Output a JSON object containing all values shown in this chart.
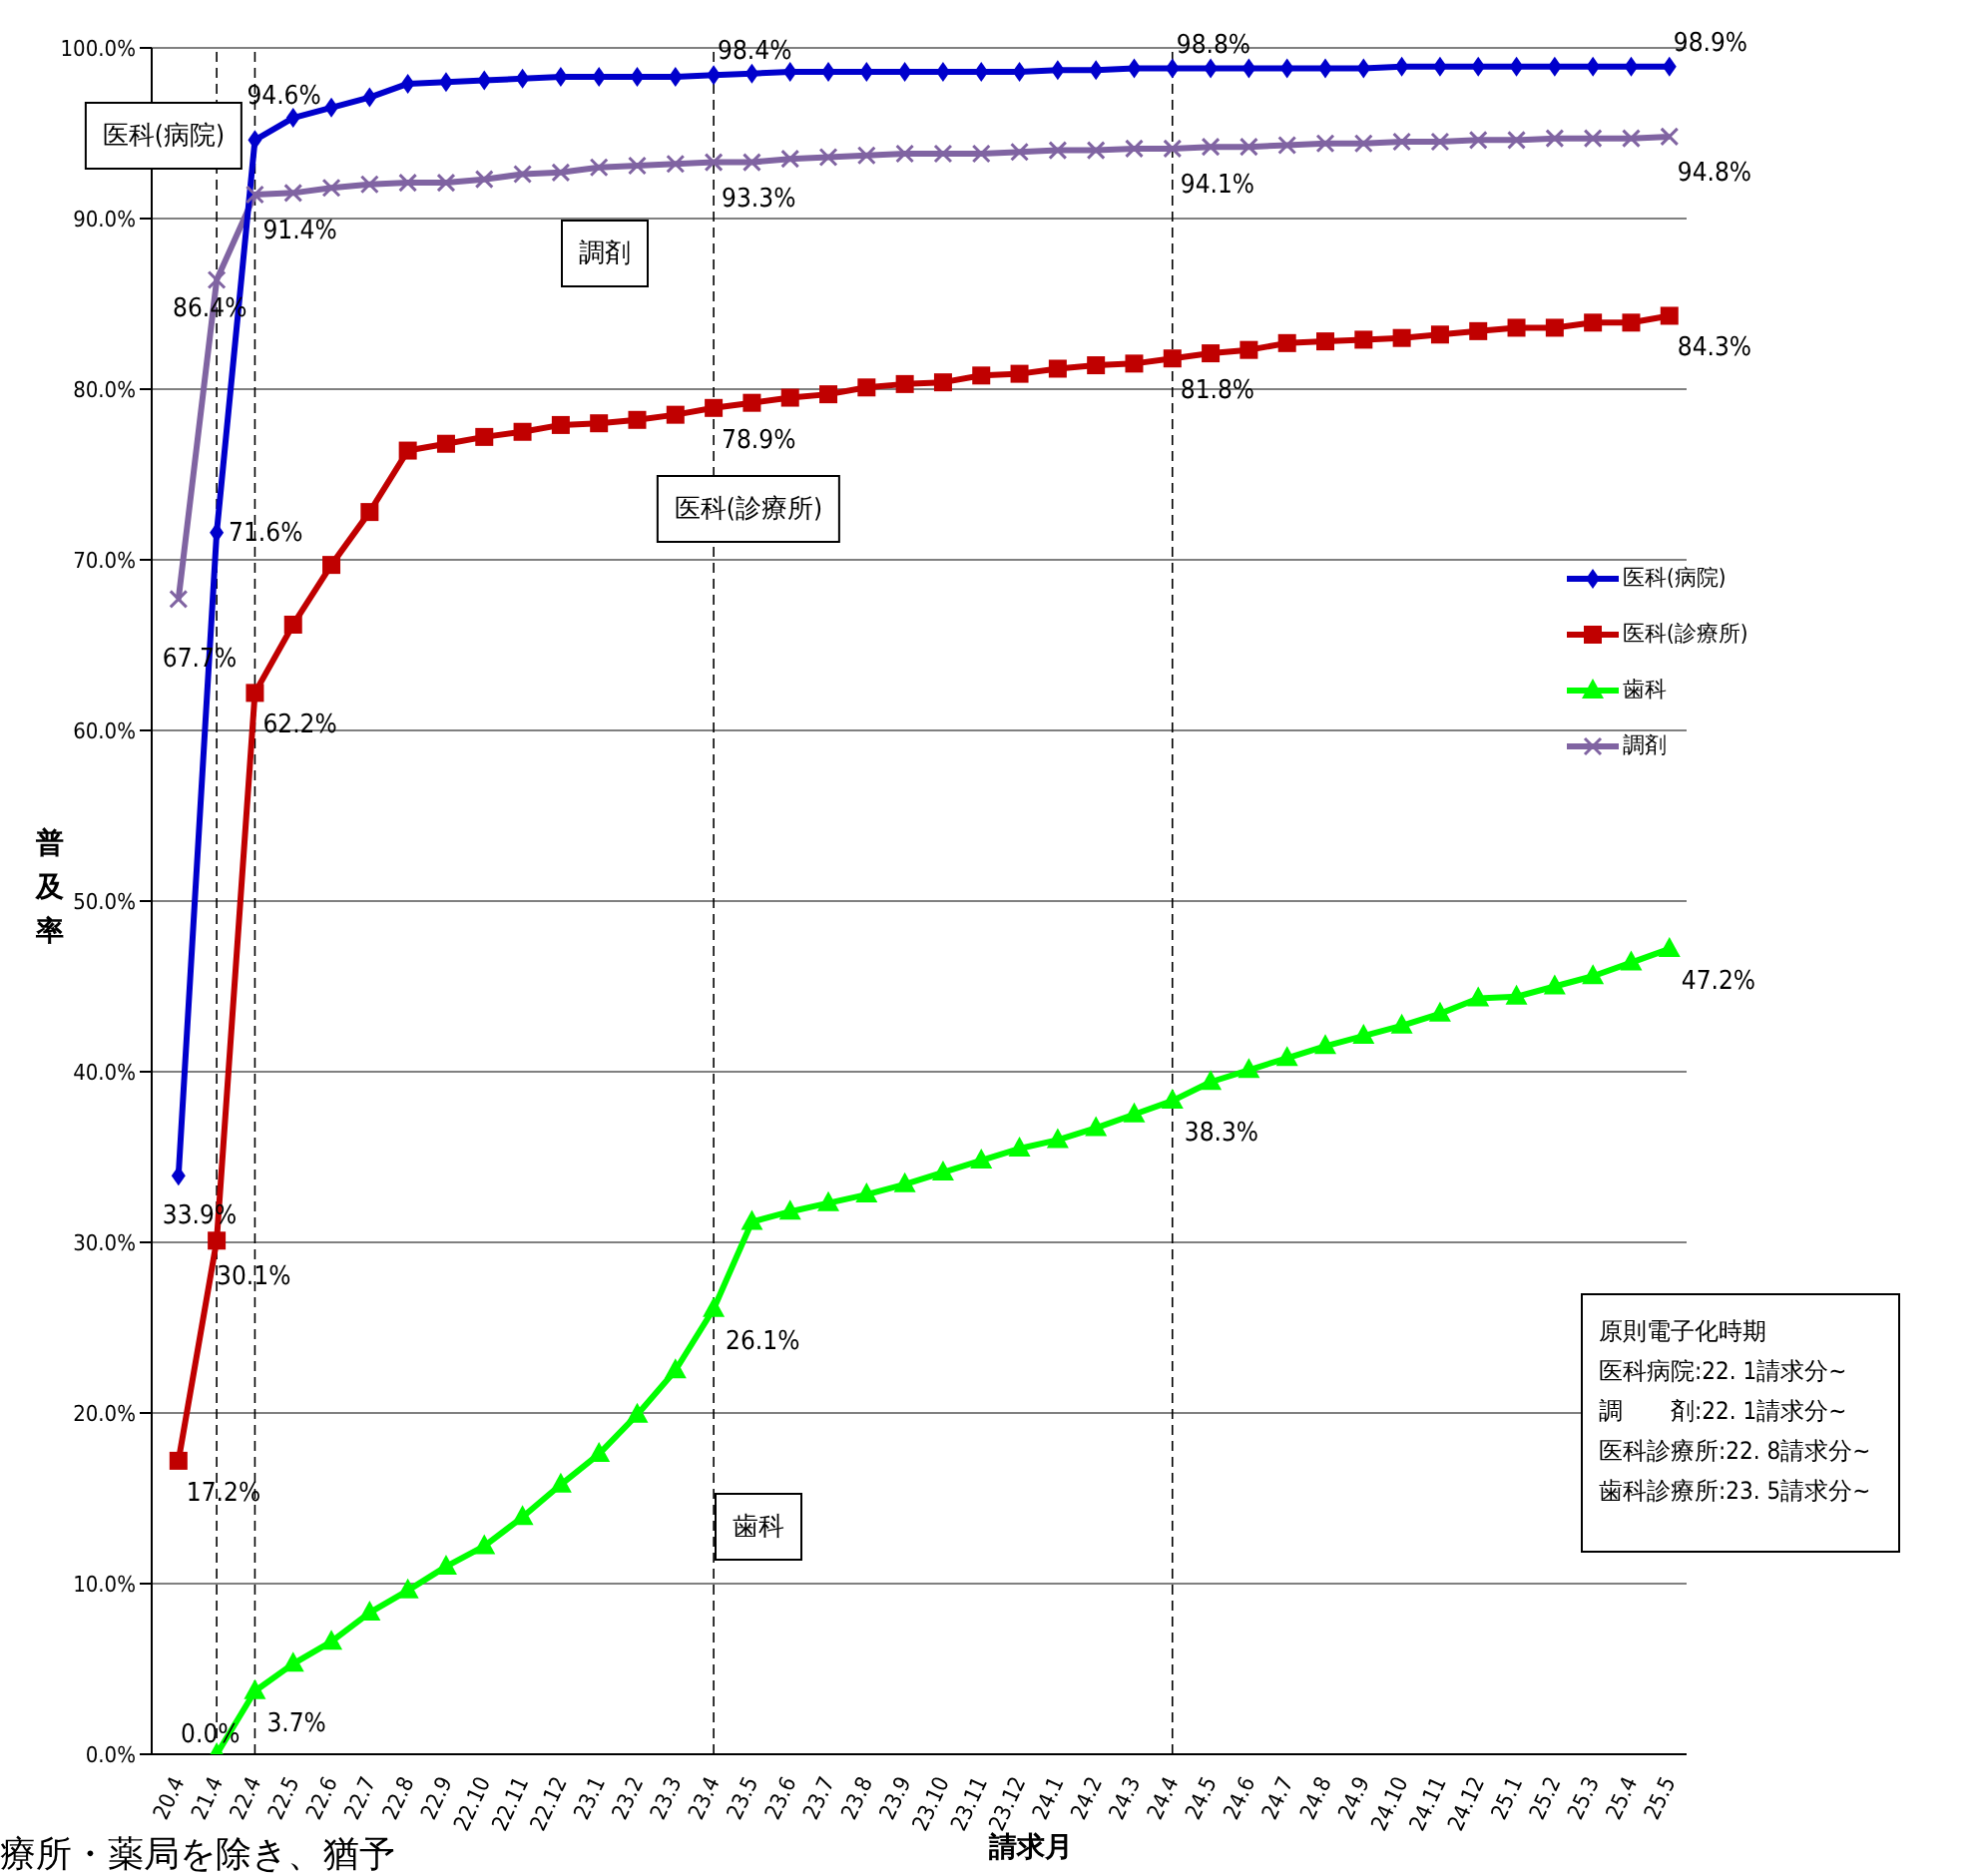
{
  "chart_data": {
    "type": "line",
    "xlabel": "請求月",
    "ylabel": "普及率",
    "categories": [
      "20.4",
      "21.4",
      "22.4",
      "22.5",
      "22.6",
      "22.7",
      "22.8",
      "22.9",
      "22.10",
      "22.11",
      "22.12",
      "23.1",
      "23.2",
      "23.3",
      "23.4",
      "23.5",
      "23.6",
      "23.7",
      "23.8",
      "23.9",
      "23.10",
      "23.11",
      "23.12",
      "24.1",
      "24.2",
      "24.3",
      "24.4",
      "24.5",
      "24.6",
      "24.7",
      "24.8",
      "24.9",
      "24.10",
      "24.11",
      "24.12",
      "25.1",
      "25.2",
      "25.3",
      "25.4",
      "25.5"
    ],
    "ylim": [
      0,
      100
    ],
    "yticks": [
      {
        "value": 0,
        "label": "0.0%"
      },
      {
        "value": 10,
        "label": "10.0%"
      },
      {
        "value": 20,
        "label": "20.0%"
      },
      {
        "value": 30,
        "label": "30.0%"
      },
      {
        "value": 40,
        "label": "40.0%"
      },
      {
        "value": 50,
        "label": "50.0%"
      },
      {
        "value": 60,
        "label": "60.0%"
      },
      {
        "value": 70,
        "label": "70.0%"
      },
      {
        "value": 80,
        "label": "80.0%"
      },
      {
        "value": 90,
        "label": "90.0%"
      },
      {
        "value": 100,
        "label": "100.0%"
      }
    ],
    "grid": "y",
    "legend": "right",
    "line_style": "solid",
    "series": [
      {
        "name": "医科(病院)",
        "color": "#0000cc",
        "marker": "diamond",
        "values": [
          33.9,
          71.6,
          94.6,
          95.9,
          96.5,
          97.1,
          97.9,
          98.0,
          98.1,
          98.2,
          98.3,
          98.3,
          98.3,
          98.3,
          98.4,
          98.5,
          98.6,
          98.6,
          98.6,
          98.6,
          98.6,
          98.6,
          98.6,
          98.7,
          98.7,
          98.8,
          98.8,
          98.8,
          98.8,
          98.8,
          98.8,
          98.8,
          98.9,
          98.9,
          98.9,
          98.9,
          98.9,
          98.9,
          98.9,
          98.9
        ],
        "value_labels": [
          "33.9%",
          "71.6%",
          "94.6%",
          null,
          null,
          null,
          null,
          null,
          null,
          null,
          null,
          null,
          null,
          null,
          "98.4%",
          null,
          null,
          null,
          null,
          null,
          null,
          null,
          null,
          null,
          null,
          null,
          "98.8%",
          null,
          null,
          null,
          null,
          null,
          null,
          null,
          null,
          null,
          null,
          null,
          null,
          "98.9%"
        ]
      },
      {
        "name": "医科(診療所)",
        "color": "#c00000",
        "marker": "square",
        "values": [
          17.2,
          30.1,
          62.2,
          66.2,
          69.7,
          72.8,
          76.4,
          76.8,
          77.2,
          77.5,
          77.9,
          78.0,
          78.2,
          78.5,
          78.9,
          79.2,
          79.5,
          79.7,
          80.1,
          80.3,
          80.4,
          80.8,
          80.9,
          81.2,
          81.4,
          81.5,
          81.8,
          82.1,
          82.3,
          82.7,
          82.8,
          82.9,
          83.0,
          83.2,
          83.4,
          83.6,
          83.6,
          83.9,
          83.9,
          84.3
        ],
        "value_labels": [
          "17.2%",
          "30.1%",
          "62.2%",
          null,
          null,
          null,
          null,
          null,
          null,
          null,
          null,
          null,
          null,
          null,
          "78.9%",
          null,
          null,
          null,
          null,
          null,
          null,
          null,
          null,
          null,
          null,
          null,
          "81.8%",
          null,
          null,
          null,
          null,
          null,
          null,
          null,
          null,
          null,
          null,
          null,
          null,
          "84.3%"
        ]
      },
      {
        "name": "歯科",
        "color": "#00ff00",
        "marker": "triangle",
        "values": [
          null,
          0.0,
          3.7,
          5.3,
          6.6,
          8.3,
          9.6,
          11.0,
          12.2,
          13.9,
          15.8,
          17.6,
          19.9,
          22.5,
          26.1,
          31.2,
          31.8,
          32.3,
          32.8,
          33.4,
          34.1,
          34.8,
          35.5,
          36.0,
          36.7,
          37.5,
          38.3,
          39.4,
          40.1,
          40.8,
          41.5,
          42.1,
          42.7,
          43.4,
          44.3,
          44.4,
          45.0,
          45.6,
          46.4,
          47.2
        ],
        "value_labels": [
          null,
          "0.0%",
          "3.7%",
          null,
          null,
          null,
          null,
          null,
          null,
          null,
          null,
          null,
          null,
          null,
          "26.1%",
          null,
          null,
          null,
          null,
          null,
          null,
          null,
          null,
          null,
          null,
          null,
          "38.3%",
          null,
          null,
          null,
          null,
          null,
          null,
          null,
          null,
          null,
          null,
          null,
          null,
          "47.2%"
        ]
      },
      {
        "name": "調剤",
        "color": "#8064a2",
        "marker": "cross",
        "values": [
          67.7,
          86.4,
          91.4,
          91.5,
          91.8,
          92.0,
          92.1,
          92.1,
          92.3,
          92.6,
          92.7,
          93.0,
          93.1,
          93.2,
          93.3,
          93.3,
          93.5,
          93.6,
          93.7,
          93.8,
          93.8,
          93.8,
          93.9,
          94.0,
          94.0,
          94.1,
          94.1,
          94.2,
          94.2,
          94.3,
          94.4,
          94.4,
          94.5,
          94.5,
          94.6,
          94.6,
          94.7,
          94.7,
          94.7,
          94.8
        ],
        "value_labels": [
          "67.7%",
          "86.4%",
          "91.4%",
          null,
          null,
          null,
          null,
          null,
          null,
          null,
          null,
          null,
          null,
          null,
          "93.3%",
          null,
          null,
          null,
          null,
          null,
          null,
          null,
          null,
          null,
          null,
          null,
          "94.1%",
          null,
          null,
          null,
          null,
          null,
          null,
          null,
          null,
          null,
          null,
          null,
          null,
          "94.8%"
        ]
      }
    ],
    "ref_lines": [
      {
        "axis": "x",
        "value": "21.4",
        "line_style": "dashed"
      },
      {
        "axis": "x",
        "value": "22.4",
        "line_style": "dashed"
      },
      {
        "axis": "x",
        "value": "23.4",
        "line_style": "dashed"
      },
      {
        "axis": "x",
        "value": "24.4",
        "line_style": "dashed"
      }
    ],
    "annotations": [
      "医科(病院)",
      "調剤",
      "医科(診療所)",
      "歯科",
      "原則電子化時期",
      "医科病院:22. 1請求分~",
      "調　　剤:22. 1請求分~",
      "医科診療所:22. 8請求分~",
      "歯科診療所:23. 5請求分~",
      "療所・薬局を除き、猶予"
    ]
  }
}
